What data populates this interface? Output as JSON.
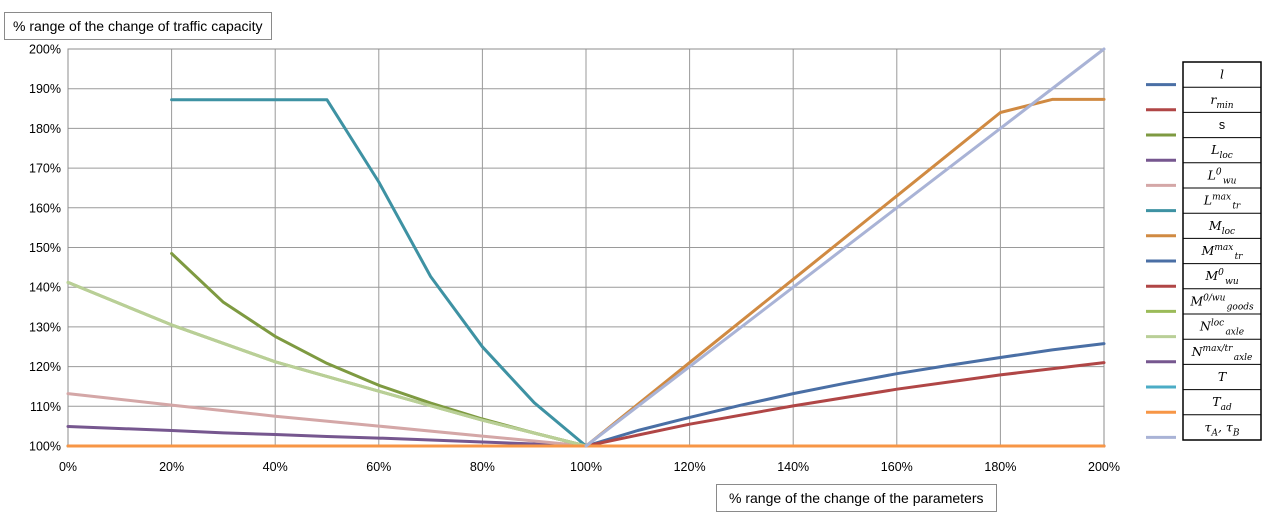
{
  "chart_data": {
    "type": "line",
    "ylabel": "% range of the change of traffic capacity",
    "xlabel": "% range of the change of the parameters",
    "xlim": [
      0,
      200
    ],
    "ylim": [
      100,
      200
    ],
    "x_ticks": [
      "0%",
      "20%",
      "40%",
      "60%",
      "80%",
      "100%",
      "120%",
      "140%",
      "160%",
      "180%",
      "200%"
    ],
    "y_ticks": [
      "100%",
      "110%",
      "120%",
      "130%",
      "140%",
      "150%",
      "160%",
      "170%",
      "180%",
      "190%",
      "200%"
    ],
    "grid": true,
    "legend_position": "right",
    "series": [
      {
        "name": "l",
        "sym": "l",
        "color": "#4a6fa5",
        "x": [
          100,
          110,
          120,
          130,
          140,
          150,
          160,
          170,
          180,
          190,
          200
        ],
        "y": [
          100,
          103.9,
          107.2,
          110.3,
          113.2,
          115.8,
          118.2,
          120.3,
          122.3,
          124.2,
          125.8
        ]
      },
      {
        "name": "r_min",
        "sym": "r",
        "sub": "min",
        "color": "#b04646",
        "x": [
          100,
          120,
          140,
          160,
          180,
          200
        ],
        "y": [
          100,
          105.5,
          110.1,
          114.3,
          117.9,
          121.0
        ]
      },
      {
        "name": "s",
        "sym": "s",
        "plain": true,
        "color": "#7e9a41",
        "x": [
          20,
          30,
          40,
          50,
          60,
          70,
          80,
          90,
          100
        ],
        "y": [
          148.5,
          136.2,
          127.6,
          120.8,
          115.3,
          110.8,
          106.8,
          103.3,
          100
        ]
      },
      {
        "name": "L_loc",
        "sym": "L",
        "sub": "loc",
        "color": "#76578f",
        "x": [
          0,
          20,
          30,
          40,
          50,
          60,
          70,
          80,
          90,
          100
        ],
        "y": [
          104.9,
          103.9,
          103.3,
          102.9,
          102.4,
          102.0,
          101.5,
          101.0,
          100.5,
          100
        ]
      },
      {
        "name": "L_wu^0",
        "sym": "L",
        "sub": "wu",
        "sup": "0",
        "color": "#d4a7a7",
        "x": [
          0,
          20,
          40,
          60,
          80,
          100
        ],
        "y": [
          113.2,
          110.3,
          107.5,
          105.0,
          102.5,
          100
        ]
      },
      {
        "name": "L_tr^max",
        "sym": "L",
        "sub": "tr",
        "sup": "max",
        "color": "#3e92a3",
        "x": [
          20,
          30,
          40,
          50,
          60,
          70,
          80,
          90,
          100
        ],
        "y": [
          187.2,
          187.2,
          187.2,
          187.2,
          166.5,
          142.7,
          125.0,
          110.9,
          100
        ]
      },
      {
        "name": "M_loc",
        "sym": "M",
        "sub": "loc",
        "color": "#d08a42",
        "x": [
          100,
          120,
          140,
          160,
          180,
          190,
          200
        ],
        "y": [
          100,
          121.0,
          142.0,
          163.0,
          184.0,
          187.3,
          187.3
        ]
      },
      {
        "name": "M_tr^max",
        "sym": "M",
        "sub": "tr",
        "sup": "max",
        "color": "#4a6fa5",
        "x": [
          100,
          200
        ],
        "y": [
          100,
          100
        ]
      },
      {
        "name": "M_wu^0",
        "sym": "M",
        "sub": "wu",
        "sup": "0",
        "color": "#b04646",
        "x": [
          100,
          200
        ],
        "y": [
          100,
          100
        ]
      },
      {
        "name": "M_goods^0/wu",
        "sym": "M",
        "sub": "goods",
        "sup": "0/wu",
        "color": "#9bbb59",
        "x": [
          0,
          20,
          40,
          60,
          80,
          100
        ],
        "y": [
          141.2,
          130.5,
          121.2,
          113.8,
          106.5,
          100
        ]
      },
      {
        "name": "N_axle^loc",
        "sym": "N",
        "sub": "axle",
        "sup": "loc",
        "color": "#b9cf97",
        "x": [
          0,
          20,
          40,
          60,
          80,
          100
        ],
        "y": [
          141.2,
          130.5,
          121.2,
          113.8,
          106.5,
          100
        ]
      },
      {
        "name": "N_axle^max/tr",
        "sym": "N",
        "sub": "axle",
        "sup": "max/tr",
        "color": "#76578f",
        "x": [
          0,
          100
        ],
        "y": [
          100,
          100
        ]
      },
      {
        "name": "T",
        "sym": "T",
        "color": "#4bacc6",
        "x": [
          0,
          100
        ],
        "y": [
          100,
          100
        ]
      },
      {
        "name": "T_ad",
        "sym": "T",
        "sub": "ad",
        "color": "#f79646",
        "x": [
          0,
          200
        ],
        "y": [
          100,
          100
        ]
      },
      {
        "name": "τ_A, τ_B",
        "sym": "τ",
        "sub": "A",
        "extra": "τ",
        "extra_sub": "B",
        "color": "#a9b3d6",
        "x": [
          100,
          200
        ],
        "y": [
          100,
          200
        ]
      }
    ]
  }
}
